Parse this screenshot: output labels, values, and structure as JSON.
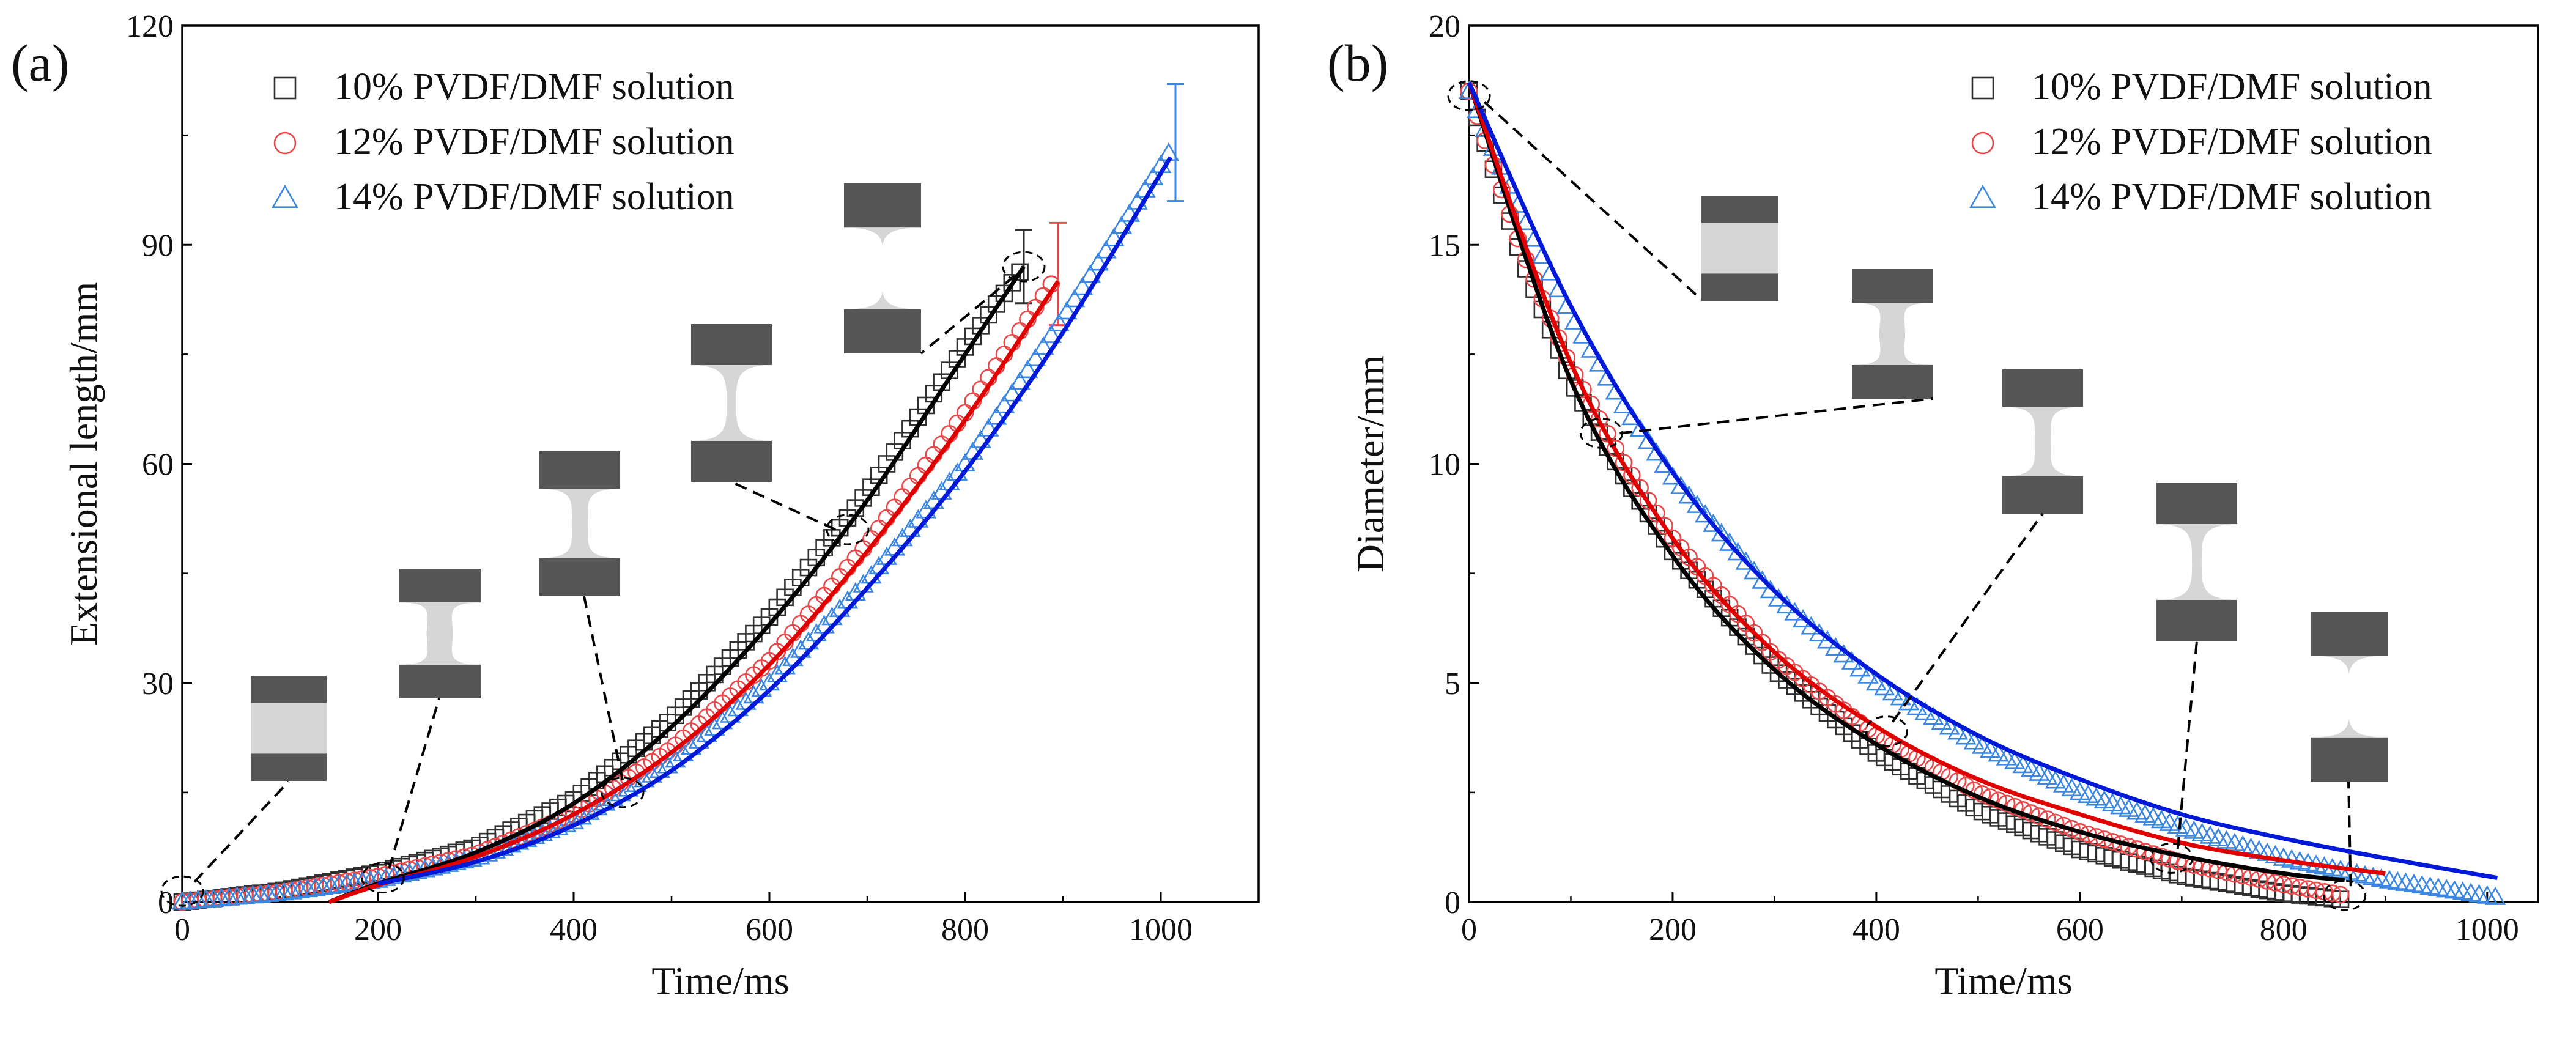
{
  "colors": {
    "s10": "#303030",
    "s12": "#e8484a",
    "s14": "#3a86e0",
    "fit10": "#000000",
    "fit12": "#e00000",
    "fit14": "#0018d8",
    "bar_dark": "#555555",
    "neck_light": "#d6d6d6"
  },
  "chart_data": [
    {
      "panel": "(a)",
      "type": "scatter",
      "xlabel": "Time/ms",
      "ylabel": "Extensional length/mm",
      "xlim": [
        0,
        1100
      ],
      "ylim": [
        0,
        120
      ],
      "xticks": [
        0,
        200,
        400,
        600,
        800,
        1000
      ],
      "yticks": [
        0,
        30,
        60,
        90,
        120
      ],
      "legend_position": "top-left",
      "series": [
        {
          "name": "10% PVDF/DMF solution",
          "marker": "square",
          "x": [
            0,
            100,
            200,
            300,
            400,
            500,
            600,
            700,
            800,
            860
          ],
          "y": [
            0,
            1.5,
            4,
            7.5,
            14,
            25,
            39,
            56,
            76,
            87
          ],
          "end_error": 5
        },
        {
          "name": "12% PVDF/DMF solution",
          "marker": "circle",
          "x": [
            0,
            100,
            200,
            300,
            400,
            500,
            600,
            700,
            800,
            895
          ],
          "y": [
            0,
            1.3,
            3.5,
            6.5,
            12,
            21,
            33,
            49,
            67,
            86
          ],
          "end_error": 7
        },
        {
          "name": "14% PVDF/DMF solution",
          "marker": "triangle",
          "x": [
            0,
            100,
            200,
            300,
            400,
            500,
            600,
            700,
            800,
            900,
            1015
          ],
          "y": [
            0,
            1.2,
            3,
            6,
            11,
            19,
            30,
            44,
            60,
            80,
            104
          ],
          "end_error": 8
        }
      ],
      "fits": [
        {
          "series": "10% PVDF/DMF solution",
          "x": [
            150,
            200,
            300,
            400,
            500,
            600,
            700,
            800,
            860
          ],
          "y": [
            0,
            2.5,
            6.8,
            13.5,
            24,
            38,
            55,
            75,
            87
          ]
        },
        {
          "series": "12% PVDF/DMF solution",
          "x": [
            150,
            200,
            300,
            400,
            500,
            600,
            700,
            800,
            895
          ],
          "y": [
            0,
            2.3,
            6.2,
            12,
            20.5,
            32.5,
            48,
            66,
            85
          ]
        },
        {
          "series": "14% PVDF/DMF solution",
          "x": [
            200,
            300,
            400,
            500,
            600,
            700,
            800,
            900,
            1010
          ],
          "y": [
            2.5,
            5.5,
            10.5,
            18,
            29,
            43,
            59,
            78,
            102
          ]
        }
      ]
    },
    {
      "panel": "(b)",
      "type": "scatter",
      "xlabel": "Time/ms",
      "ylabel": "Diameter/mm",
      "xlim": [
        0,
        1050
      ],
      "ylim": [
        0,
        20
      ],
      "xticks": [
        0,
        200,
        400,
        600,
        800,
        1000
      ],
      "yticks": [
        0,
        5,
        10,
        15,
        20
      ],
      "legend_position": "top-right",
      "series": [
        {
          "name": "10% PVDF/DMF solution",
          "marker": "square",
          "x": [
            0,
            50,
            100,
            150,
            200,
            300,
            400,
            500,
            600,
            700,
            800,
            860
          ],
          "y": [
            18.5,
            14.8,
            11.9,
            9.8,
            8.0,
            5.3,
            3.4,
            2.1,
            1.2,
            0.6,
            0.2,
            0.05
          ]
        },
        {
          "name": "12% PVDF/DMF solution",
          "marker": "circle",
          "x": [
            0,
            50,
            100,
            150,
            200,
            300,
            400,
            500,
            600,
            700,
            800,
            860
          ],
          "y": [
            18.5,
            15.0,
            12.2,
            10.1,
            8.3,
            5.6,
            3.8,
            2.5,
            1.6,
            0.9,
            0.4,
            0.15
          ]
        },
        {
          "name": "14% PVDF/DMF solution",
          "marker": "triangle",
          "x": [
            0,
            50,
            100,
            150,
            200,
            300,
            400,
            500,
            600,
            700,
            800,
            900,
            1010
          ],
          "y": [
            18.5,
            15.8,
            13.4,
            11.4,
            9.7,
            7.0,
            5.0,
            3.6,
            2.5,
            1.7,
            1.0,
            0.5,
            0.1
          ]
        }
      ],
      "fits": [
        {
          "series": "10% PVDF/DMF solution",
          "x": [
            0,
            100,
            200,
            300,
            400,
            500,
            600,
            700,
            800,
            860
          ],
          "y": [
            18.7,
            11.9,
            7.9,
            5.3,
            3.6,
            2.4,
            1.6,
            1.05,
            0.65,
            0.5
          ]
        },
        {
          "series": "12% PVDF/DMF solution",
          "x": [
            0,
            100,
            200,
            300,
            400,
            500,
            600,
            700,
            800,
            900
          ],
          "y": [
            18.7,
            12.3,
            8.3,
            5.7,
            4.0,
            2.8,
            2.0,
            1.35,
            0.95,
            0.65
          ]
        },
        {
          "series": "14% PVDF/DMF solution",
          "x": [
            0,
            100,
            200,
            300,
            400,
            500,
            600,
            700,
            800,
            900,
            1010
          ],
          "y": [
            18.7,
            13.6,
            9.8,
            7.1,
            5.2,
            3.8,
            2.8,
            2.0,
            1.45,
            1.0,
            0.55
          ]
        }
      ]
    }
  ]
}
